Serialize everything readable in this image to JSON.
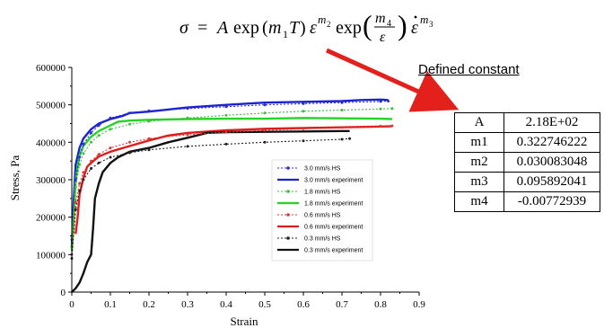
{
  "formula": {
    "latex": "σ = A exp(m₁T) ε^{m₂} exp(m₄/ε) ε̇^{m₃}",
    "sigma": "σ",
    "eq": "=",
    "A": "A",
    "exp": "exp",
    "m1": "m",
    "sub1": "1",
    "T": "T",
    "eps": "ε",
    "m2": "m",
    "sub2": "2",
    "m4": "m",
    "sub4": "4",
    "m3": "m",
    "sub3": "3",
    "lparen": "(",
    "rparen": ")"
  },
  "callout": {
    "label": "Defined constant",
    "arrow_color": "#e3201c"
  },
  "constants": [
    {
      "name": "A",
      "value": "2.18E+02"
    },
    {
      "name": "m1",
      "value": "0.322746222"
    },
    {
      "name": "m2",
      "value": "0.030083048"
    },
    {
      "name": "m3",
      "value": "0.095892041"
    },
    {
      "name": "m4",
      "value": "-0.00772939"
    }
  ],
  "chart_data": {
    "type": "line",
    "xlabel": "Strain",
    "ylabel": "Stress, Pa",
    "xlim": [
      0,
      0.9
    ],
    "ylim": [
      0,
      600000
    ],
    "xticks": [
      "0",
      "0.1",
      "0.2",
      "0.3",
      "0.4",
      "0.5",
      "0.6",
      "0.7",
      "0.8",
      "0.9"
    ],
    "yticks": [
      "0",
      "100000",
      "200000",
      "300000",
      "400000",
      "500000",
      "600000"
    ],
    "grid": false,
    "legend_position": "right-center",
    "series": [
      {
        "name": "3.0 mm/s HS",
        "color": "#2b2bd6",
        "style": "dotted-marker",
        "x": [
          0.0,
          0.01,
          0.02,
          0.03,
          0.05,
          0.07,
          0.1,
          0.15,
          0.2,
          0.3,
          0.4,
          0.5,
          0.6,
          0.7,
          0.8,
          0.82
        ],
        "y": [
          140000,
          300000,
          360000,
          395000,
          425000,
          445000,
          465000,
          478000,
          484000,
          490000,
          495000,
          500000,
          503000,
          506000,
          509000,
          510000
        ]
      },
      {
        "name": "3.0 mm/s experiment",
        "color": "#1b22d1",
        "style": "solid",
        "x": [
          0.0,
          0.005,
          0.01,
          0.02,
          0.03,
          0.05,
          0.07,
          0.1,
          0.13,
          0.15,
          0.2,
          0.3,
          0.4,
          0.5,
          0.6,
          0.7,
          0.75,
          0.8,
          0.82
        ],
        "y": [
          120000,
          250000,
          340000,
          385000,
          410000,
          435000,
          450000,
          462000,
          470000,
          478000,
          482000,
          493000,
          500000,
          506000,
          508000,
          510000,
          513000,
          514000,
          513000
        ]
      },
      {
        "name": "1.8 mm/s HS",
        "color": "#3cbf3c",
        "style": "dotted-marker",
        "x": [
          0.0,
          0.01,
          0.02,
          0.03,
          0.05,
          0.07,
          0.1,
          0.15,
          0.2,
          0.3,
          0.4,
          0.5,
          0.6,
          0.7,
          0.8,
          0.83
        ],
        "y": [
          120000,
          280000,
          340000,
          370000,
          400000,
          418000,
          435000,
          448000,
          456000,
          465000,
          472000,
          478000,
          483000,
          486000,
          489000,
          490000
        ]
      },
      {
        "name": "1.8 mm/s experiment",
        "color": "#25d325",
        "style": "solid",
        "x": [
          0.0,
          0.005,
          0.01,
          0.02,
          0.03,
          0.05,
          0.07,
          0.1,
          0.12,
          0.15,
          0.2,
          0.3,
          0.4,
          0.5,
          0.6,
          0.7,
          0.8,
          0.83
        ],
        "y": [
          110000,
          200000,
          300000,
          365000,
          390000,
          415000,
          430000,
          445000,
          455000,
          458000,
          460000,
          462000,
          463000,
          463000,
          465000,
          464000,
          463000,
          462000
        ]
      },
      {
        "name": "0.6 mm/s HS",
        "color": "#d83a3a",
        "style": "dotted-marker",
        "x": [
          0.0,
          0.01,
          0.02,
          0.03,
          0.05,
          0.07,
          0.1,
          0.15,
          0.2,
          0.3,
          0.4,
          0.5,
          0.6,
          0.7,
          0.8,
          0.83
        ],
        "y": [
          100000,
          240000,
          290000,
          320000,
          350000,
          368000,
          385000,
          400000,
          410000,
          420000,
          427000,
          432000,
          436000,
          440000,
          443000,
          444000
        ]
      },
      {
        "name": "0.6 mm/s experiment",
        "color": "#e01b1b",
        "style": "solid",
        "x": [
          0.01,
          0.015,
          0.02,
          0.03,
          0.04,
          0.05,
          0.07,
          0.1,
          0.15,
          0.2,
          0.25,
          0.3,
          0.4,
          0.5,
          0.6,
          0.7,
          0.8,
          0.83
        ],
        "y": [
          155000,
          200000,
          260000,
          305000,
          335000,
          345000,
          362000,
          375000,
          390000,
          405000,
          418000,
          425000,
          432000,
          436000,
          438000,
          440000,
          442000,
          443000
        ]
      },
      {
        "name": "0.3 mm/s HS",
        "color": "#222222",
        "style": "dotted-marker",
        "x": [
          0.0,
          0.01,
          0.02,
          0.03,
          0.05,
          0.07,
          0.1,
          0.15,
          0.2,
          0.3,
          0.4,
          0.5,
          0.6,
          0.7,
          0.72
        ],
        "y": [
          90000,
          220000,
          270000,
          300000,
          330000,
          345000,
          360000,
          372000,
          380000,
          389000,
          395000,
          400000,
          404000,
          408000,
          410000
        ]
      },
      {
        "name": "0.3 mm/s experiment",
        "color": "#111111",
        "style": "solid",
        "x": [
          0.0,
          0.01,
          0.02,
          0.03,
          0.04,
          0.05,
          0.055,
          0.06,
          0.07,
          0.08,
          0.1,
          0.12,
          0.15,
          0.2,
          0.25,
          0.3,
          0.35,
          0.4,
          0.5,
          0.6,
          0.7,
          0.72
        ],
        "y": [
          0,
          10000,
          25000,
          50000,
          80000,
          100000,
          170000,
          250000,
          290000,
          320000,
          345000,
          360000,
          375000,
          385000,
          400000,
          412000,
          425000,
          427000,
          428000,
          429000,
          430000,
          430000
        ]
      }
    ]
  }
}
